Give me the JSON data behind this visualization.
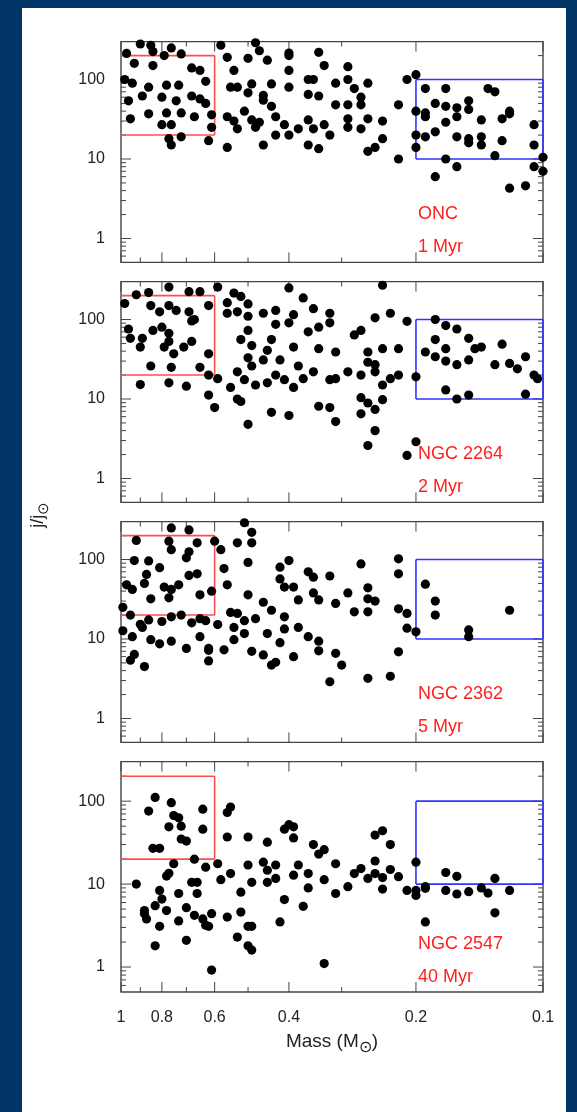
{
  "chart_data": [
    {
      "type": "scatter",
      "log": "xy",
      "xlim": [
        1,
        0.1
      ],
      "ylim": [
        0.5,
        300
      ],
      "marker": "circle",
      "tick_labels": "y",
      "xticks": [
        1,
        {
          "value": 0.9,
          "label": null
        },
        0.8,
        {
          "value": 0.7,
          "label": null
        },
        0.6,
        {
          "value": 0.5,
          "label": null
        },
        0.4,
        {
          "value": 0.3,
          "label": null
        },
        0.2,
        0.1
      ],
      "yticks": [
        {
          "value": 0.6,
          "label": null
        },
        {
          "value": 0.7,
          "label": null
        },
        {
          "value": 0.8,
          "label": null
        },
        {
          "value": 0.9,
          "label": null
        },
        1,
        {
          "value": 2,
          "label": null
        },
        {
          "value": 3,
          "label": null
        },
        {
          "value": 4,
          "label": null
        },
        {
          "value": 5,
          "label": null
        },
        {
          "value": 6,
          "label": null
        },
        {
          "value": 7,
          "label": null
        },
        {
          "value": 8,
          "label": null
        },
        {
          "value": 9,
          "label": null
        },
        10,
        {
          "value": 20,
          "label": null
        },
        {
          "value": 30,
          "label": null
        },
        {
          "value": 40,
          "label": null
        },
        {
          "value": 50,
          "label": null
        },
        {
          "value": 60,
          "label": null
        },
        {
          "value": 70,
          "label": null
        },
        {
          "value": 80,
          "label": null
        },
        {
          "value": 90,
          "label": null
        },
        100,
        {
          "value": 200,
          "label": null
        }
      ],
      "annotations": [
        "ONC",
        "1 Myr"
      ],
      "series": [
        {
          "type": "scatter",
          "color": "#000000",
          "x": [
            0.9,
            0.85,
            0.97,
            0.84,
            0.79,
            0.76,
            0.72,
            0.58,
            0.48,
            0.47,
            0.4,
            0.34,
            0.56,
            0.5,
            0.45,
            0.4,
            0.93,
            0.84,
            0.68,
            0.65,
            0.54,
            0.4,
            0.33,
            0.29,
            0.29,
            0.31,
            0.26,
            0.36,
            0.35,
            0.21,
            0.2,
            0.98,
            0.94,
            0.86,
            0.78,
            0.73,
            0.63,
            0.55,
            0.53,
            0.49,
            0.44,
            0.4,
            0.36,
            0.34,
            0.5,
            0.46,
            0.28,
            0.27,
            0.19,
            0.17,
            0.135,
            0.13,
            0.96,
            0.89,
            0.8,
            0.74,
            0.68,
            0.65,
            0.63,
            0.46,
            0.44,
            0.31,
            0.29,
            0.27,
            0.22,
            0.18,
            0.17,
            0.16,
            0.15,
            0.15,
            0.12,
            0.12,
            0.95,
            0.86,
            0.78,
            0.72,
            0.67,
            0.61,
            0.56,
            0.54,
            0.51,
            0.49,
            0.47,
            0.43,
            0.41,
            0.38,
            0.36,
            0.33,
            0.29,
            0.26,
            0.24,
            0.2,
            0.19,
            0.19,
            0.17,
            0.16,
            0.14,
            0.125,
            0.105,
            0.8,
            0.76,
            0.61,
            0.53,
            0.48,
            0.43,
            0.4,
            0.35,
            0.32,
            0.29,
            0.27,
            0.24,
            0.2,
            0.19,
            0.18,
            0.16,
            0.15,
            0.15,
            0.14,
            0.14,
            0.125,
            0.77,
            0.76,
            0.72,
            0.62,
            0.56,
            0.46,
            0.36,
            0.34,
            0.26,
            0.25,
            0.22,
            0.2,
            0.17,
            0.16,
            0.18,
            0.13,
            0.12,
            0.11,
            0.105,
            0.105,
            0.1,
            0.1
          ],
          "values": [
            280,
            270,
            213,
            225,
            200,
            250,
            210,
            270,
            290,
            230,
            215,
            220,
            190,
            185,
            175,
            200,
            160,
            150,
            140,
            130,
            130,
            130,
            150,
            145,
            100,
            90,
            90,
            100,
            100,
            100,
            115,
            100,
            90,
            80,
            85,
            85,
            95,
            80,
            80,
            88,
            88,
            80,
            65,
            62,
            68,
            63,
            77,
            60,
            77,
            77,
            77,
            70,
            54,
            62,
            60,
            54,
            62,
            57,
            50,
            55,
            46,
            48,
            48,
            48,
            48,
            50,
            46,
            44,
            54,
            42,
            40,
            37,
            32,
            37,
            38,
            38,
            34,
            36,
            34,
            30,
            40,
            31,
            29,
            34,
            27,
            24,
            31,
            27,
            32,
            32,
            30,
            40,
            38,
            34,
            29,
            34,
            31,
            32,
            27,
            27,
            27,
            25,
            24,
            25,
            20,
            20,
            24,
            20,
            25,
            24,
            18,
            20,
            19,
            22,
            19,
            16,
            18,
            19,
            15,
            17,
            18,
            15,
            19,
            17,
            14,
            15,
            15,
            13.5,
            12.5,
            14,
            10,
            14,
            10,
            8,
            6,
            11,
            4.3,
            4.6,
            8,
            15,
            7,
            10.5
          ]
        },
        {
          "type": "line",
          "color": "#ff4d4d",
          "marker": "none",
          "x": [
            1,
            0.6
          ],
          "values": [
            20,
            20
          ]
        },
        {
          "type": "line",
          "color": "#ff4d4d",
          "marker": "none",
          "x": [
            1,
            0.6
          ],
          "values": [
            200,
            200
          ]
        },
        {
          "type": "line",
          "color": "#ff4d4d",
          "marker": "none",
          "x": [
            0.6,
            0.6
          ],
          "values": [
            20,
            200
          ]
        },
        {
          "type": "line",
          "color": "#3333ff",
          "marker": "none",
          "x": [
            0.2,
            0.1
          ],
          "values": [
            10,
            10
          ]
        },
        {
          "type": "line",
          "color": "#3333ff",
          "marker": "none",
          "x": [
            0.2,
            0.1
          ],
          "values": [
            100,
            100
          ]
        },
        {
          "type": "line",
          "color": "#3333ff",
          "marker": "none",
          "x": [
            0.2,
            0.2
          ],
          "values": [
            10,
            100
          ]
        },
        {
          "type": "line",
          "color": "#3333ff",
          "marker": "none",
          "x": [
            0.1,
            0.1
          ],
          "values": [
            10,
            100
          ]
        }
      ]
    },
    {
      "type": "scatter",
      "log": "xy",
      "xlim": [
        1,
        0.1
      ],
      "ylim": [
        0.5,
        300
      ],
      "marker": "circle",
      "tick_labels": "y",
      "ylabel": "j/j$_{⊙}$",
      "xticks": [
        1,
        {
          "value": 0.9,
          "label": null
        },
        0.8,
        {
          "value": 0.7,
          "label": null
        },
        0.6,
        {
          "value": 0.5,
          "label": null
        },
        0.4,
        {
          "value": 0.3,
          "label": null
        },
        0.2,
        0.1
      ],
      "yticks": [
        {
          "value": 0.6,
          "label": null
        },
        {
          "value": 0.7,
          "label": null
        },
        {
          "value": 0.8,
          "label": null
        },
        {
          "value": 0.9,
          "label": null
        },
        1,
        {
          "value": 2,
          "label": null
        },
        {
          "value": 3,
          "label": null
        },
        {
          "value": 4,
          "label": null
        },
        {
          "value": 5,
          "label": null
        },
        {
          "value": 6,
          "label": null
        },
        {
          "value": 7,
          "label": null
        },
        {
          "value": 8,
          "label": null
        },
        {
          "value": 9,
          "label": null
        },
        10,
        {
          "value": 20,
          "label": null
        },
        {
          "value": 30,
          "label": null
        },
        {
          "value": 40,
          "label": null
        },
        {
          "value": 50,
          "label": null
        },
        {
          "value": 60,
          "label": null
        },
        {
          "value": 70,
          "label": null
        },
        {
          "value": 80,
          "label": null
        },
        {
          "value": 90,
          "label": null
        },
        100,
        {
          "value": 200,
          "label": null
        }
      ],
      "annotations": [
        "NGC 2264",
        "2 Myr"
      ],
      "series": [
        {
          "type": "scatter",
          "color": "#000000",
          "x": [
            0.98,
            0.92,
            0.86,
            0.77,
            0.69,
            0.65,
            0.59,
            0.4,
            0.24,
            0.54,
            0.52,
            0.5,
            0.37,
            0.35,
            0.85,
            0.77,
            0.74,
            0.81,
            0.69,
            0.62,
            0.56,
            0.56,
            0.53,
            0.5,
            0.46,
            0.43,
            0.39,
            0.32,
            0.23,
            0.25,
            0.21,
            0.18,
            0.17,
            0.96,
            0.95,
            0.89,
            0.9,
            0.84,
            0.8,
            0.77,
            0.68,
            0.67,
            0.68,
            0.77,
            0.71,
            0.75,
            0.79,
            0.85,
            0.76,
            0.65,
            0.62,
            0.5,
            0.52,
            0.49,
            0.44,
            0.39,
            0.43,
            0.4,
            0.36,
            0.34,
            0.32,
            0.34,
            0.31,
            0.28,
            0.27,
            0.26,
            0.24,
            0.22,
            0.19,
            0.18,
            0.17,
            0.16,
            0.15,
            0.145,
            0.14,
            0.125,
            0.15,
            0.13,
            0.12,
            0.11,
            0.115,
            0.105,
            0.103,
            0.18,
            0.17,
            0.16,
            0.62,
            0.59,
            0.55,
            0.53,
            0.51,
            0.49,
            0.48,
            0.45,
            0.43,
            0.42,
            0.41,
            0.39,
            0.38,
            0.37,
            0.35,
            0.32,
            0.31,
            0.29,
            0.27,
            0.26,
            0.25,
            0.25,
            0.24,
            0.23,
            0.22,
            0.2,
            0.5,
            0.46,
            0.45,
            0.53,
            0.52,
            0.44,
            0.4,
            0.5,
            0.34,
            0.32,
            0.31,
            0.27,
            0.27,
            0.26,
            0.25,
            0.24,
            0.25,
            0.26,
            0.2,
            0.21,
            0.62,
            0.6,
            0.9,
            0.77,
            0.7,
            0.17,
            0.16,
            0.15,
            0.11
          ],
          "values": [
            159,
            205,
            218,
            256,
            224,
            224,
            256,
            250,
            270,
            215,
            195,
            157,
            187,
            137,
            150,
            150,
            130,
            125,
            125,
            150,
            163,
            120,
            125,
            110,
            120,
            130,
            115,
            120,
            120,
            105,
            95,
            100,
            84,
            76,
            58,
            58,
            45,
            73,
            80,
            67,
            96,
            100,
            53,
            53,
            45,
            37,
            45,
            26,
            25,
            25,
            37,
            73,
            56,
            47,
            56,
            45,
            87,
            91,
            70,
            80,
            91,
            43,
            39,
            64,
            73,
            39,
            43,
            43,
            39,
            56,
            43,
            76,
            58,
            43,
            45,
            49,
            31,
            27,
            28,
            34,
            24,
            20,
            18,
            34,
            30,
            27,
            20,
            18,
            14,
            22,
            17.5,
            26,
            15,
            16,
            20,
            31,
            17.5,
            14,
            26,
            18,
            22,
            17.5,
            18,
            22,
            20,
            29,
            22,
            27,
            15,
            18,
            20,
            19,
            33,
            31,
            41,
            10,
            9.3,
            6.8,
            6.2,
            4.8,
            8.1,
            7.8,
            5.2,
            10.4,
            6.5,
            8.9,
            7.4,
            9.8,
            4,
            2.6,
            2.9,
            1.95,
            11.2,
            7.8,
            15.2,
            16,
            14.5,
            13,
            10,
            11.2,
            11.5
          ]
        },
        {
          "type": "line",
          "color": "#ff4d4d",
          "marker": "none",
          "x": [
            1,
            0.6
          ],
          "values": [
            20,
            20
          ]
        },
        {
          "type": "line",
          "color": "#ff4d4d",
          "marker": "none",
          "x": [
            1,
            0.6
          ],
          "values": [
            200,
            200
          ]
        },
        {
          "type": "line",
          "color": "#ff4d4d",
          "marker": "none",
          "x": [
            0.6,
            0.6
          ],
          "values": [
            20,
            200
          ]
        },
        {
          "type": "line",
          "color": "#3333ff",
          "marker": "none",
          "x": [
            0.2,
            0.1
          ],
          "values": [
            10,
            10
          ]
        },
        {
          "type": "line",
          "color": "#3333ff",
          "marker": "none",
          "x": [
            0.2,
            0.1
          ],
          "values": [
            100,
            100
          ]
        },
        {
          "type": "line",
          "color": "#3333ff",
          "marker": "none",
          "x": [
            0.2,
            0.2
          ],
          "values": [
            10,
            100
          ]
        },
        {
          "type": "line",
          "color": "#3333ff",
          "marker": "none",
          "x": [
            0.1,
            0.1
          ],
          "values": [
            10,
            100
          ]
        }
      ]
    },
    {
      "type": "scatter",
      "log": "xy",
      "xlim": [
        1,
        0.1
      ],
      "ylim": [
        0.5,
        300
      ],
      "marker": "circle",
      "tick_labels": "y",
      "xticks": [
        1,
        {
          "value": 0.9,
          "label": null
        },
        0.8,
        {
          "value": 0.7,
          "label": null
        },
        0.6,
        {
          "value": 0.5,
          "label": null
        },
        0.4,
        {
          "value": 0.3,
          "label": null
        },
        0.2,
        0.1
      ],
      "yticks": [
        {
          "value": 0.6,
          "label": null
        },
        {
          "value": 0.7,
          "label": null
        },
        {
          "value": 0.8,
          "label": null
        },
        {
          "value": 0.9,
          "label": null
        },
        1,
        {
          "value": 2,
          "label": null
        },
        {
          "value": 3,
          "label": null
        },
        {
          "value": 4,
          "label": null
        },
        {
          "value": 5,
          "label": null
        },
        {
          "value": 6,
          "label": null
        },
        {
          "value": 7,
          "label": null
        },
        {
          "value": 8,
          "label": null
        },
        {
          "value": 9,
          "label": null
        },
        10,
        {
          "value": 20,
          "label": null
        },
        {
          "value": 30,
          "label": null
        },
        {
          "value": 40,
          "label": null
        },
        {
          "value": 50,
          "label": null
        },
        {
          "value": 60,
          "label": null
        },
        {
          "value": 70,
          "label": null
        },
        {
          "value": 80,
          "label": null
        },
        {
          "value": 90,
          "label": null
        },
        100,
        {
          "value": 200,
          "label": null
        }
      ],
      "annotations": [
        "NGC 2362",
        "5 Myr"
      ],
      "series": [
        {
          "type": "scatter",
          "color": "#000000",
          "x": [
            0.76,
            0.69,
            0.51,
            0.49,
            0.92,
            0.77,
            0.66,
            0.6,
            0.53,
            0.76,
            0.69,
            0.7,
            0.58,
            0.49,
            0.93,
            0.86,
            0.81,
            0.5,
            0.4,
            0.27,
            0.22,
            0.22,
            0.87,
            0.69,
            0.66,
            0.57,
            0.42,
            0.36,
            0.35,
            0.32,
            0.42,
            0.97,
            0.94,
            0.88,
            0.79,
            0.76,
            0.73,
            0.85,
            0.77,
            0.65,
            0.61,
            0.56,
            0.5,
            0.46,
            0.41,
            0.39,
            0.38,
            0.35,
            0.34,
            0.29,
            0.26,
            0.26,
            0.25,
            0.26,
            0.28,
            0.31,
            0.22,
            0.21,
            0.19,
            0.18,
            0.18,
            0.12,
            0.2,
            0.21,
            0.15,
            0.15,
            0.99,
            0.95,
            0.9,
            0.86,
            0.8,
            0.76,
            0.72,
            0.68,
            0.65,
            0.63,
            0.59,
            0.55,
            0.54,
            0.53,
            0.51,
            0.48,
            0.44,
            0.41,
            0.41,
            0.38,
            0.99,
            0.94,
            0.89,
            0.85,
            0.81,
            0.76,
            0.7,
            0.65,
            0.62,
            0.57,
            0.54,
            0.51,
            0.49,
            0.46,
            0.45,
            0.42,
            0.39,
            0.36,
            0.34,
            0.34,
            0.31,
            0.3,
            0.44,
            0.43,
            0.95,
            0.93,
            0.88,
            0.62,
            0.62,
            0.32,
            0.26,
            0.23,
            0.22
          ],
          "values": [
            250,
            236,
            290,
            220,
            174,
            170,
            162,
            170,
            162,
            133,
            125,
            105,
            133,
            162,
            97,
            96,
            79,
            92,
            97,
            88,
            102,
            66,
            65,
            63,
            66,
            77,
            80,
            70,
            60,
            62,
            57,
            48,
            42,
            50,
            45,
            42,
            48,
            32,
            33,
            36,
            40,
            48,
            36,
            29,
            45,
            45,
            31,
            38,
            31,
            38,
            44,
            32,
            30,
            22,
            22,
            28,
            24,
            21,
            49,
            30,
            20,
            23,
            12.3,
            13.7,
            13,
            10.7,
            25,
            20,
            15.3,
            17.4,
            16.6,
            19,
            20,
            16,
            18,
            17,
            15.2,
            21.6,
            14,
            21,
            17,
            18,
            23,
            19,
            13.4,
            14,
            12.7,
            10.7,
            14,
            9.8,
            8.7,
            9.4,
            7.6,
            10.7,
            7.6,
            7.3,
            9.8,
            11.7,
            7,
            6.3,
            11.7,
            9,
            6,
            10.7,
            9.4,
            7.1,
            6.6,
            4.7,
            4.7,
            5.1,
            5.4,
            6.4,
            4.5,
            7.2,
            5.3,
            2.9,
            3.2,
            3.4,
            6.9
          ]
        },
        {
          "type": "line",
          "color": "#ff4d4d",
          "marker": "none",
          "x": [
            1,
            0.6
          ],
          "values": [
            20,
            20
          ]
        },
        {
          "type": "line",
          "color": "#ff4d4d",
          "marker": "none",
          "x": [
            1,
            0.6
          ],
          "values": [
            200,
            200
          ]
        },
        {
          "type": "line",
          "color": "#ff4d4d",
          "marker": "none",
          "x": [
            0.6,
            0.6
          ],
          "values": [
            20,
            200
          ]
        },
        {
          "type": "line",
          "color": "#3333ff",
          "marker": "none",
          "x": [
            0.2,
            0.1
          ],
          "values": [
            10,
            10
          ]
        },
        {
          "type": "line",
          "color": "#3333ff",
          "marker": "none",
          "x": [
            0.2,
            0.1
          ],
          "values": [
            100,
            100
          ]
        },
        {
          "type": "line",
          "color": "#3333ff",
          "marker": "none",
          "x": [
            0.2,
            0.2
          ],
          "values": [
            10,
            100
          ]
        },
        {
          "type": "line",
          "color": "#3333ff",
          "marker": "none",
          "x": [
            0.1,
            0.1
          ],
          "values": [
            10,
            100
          ]
        }
      ]
    },
    {
      "type": "scatter",
      "log": "xy",
      "xlim": [
        1,
        0.1
      ],
      "ylim": [
        0.5,
        300
      ],
      "marker": "circle",
      "xlabel": "Mass (M$_{⊙}$)",
      "xticks": [
        1,
        {
          "value": 0.9,
          "label": null
        },
        0.8,
        {
          "value": 0.7,
          "label": null
        },
        0.6,
        {
          "value": 0.5,
          "label": null
        },
        0.4,
        {
          "value": 0.3,
          "label": null
        },
        0.2,
        0.1
      ],
      "yticks": [
        {
          "value": 0.6,
          "label": null
        },
        {
          "value": 0.7,
          "label": null
        },
        {
          "value": 0.8,
          "label": null
        },
        {
          "value": 0.9,
          "label": null
        },
        1,
        {
          "value": 2,
          "label": null
        },
        {
          "value": 3,
          "label": null
        },
        {
          "value": 4,
          "label": null
        },
        {
          "value": 5,
          "label": null
        },
        {
          "value": 6,
          "label": null
        },
        {
          "value": 7,
          "label": null
        },
        {
          "value": 8,
          "label": null
        },
        {
          "value": 9,
          "label": null
        },
        10,
        {
          "value": 20,
          "label": null
        },
        {
          "value": 30,
          "label": null
        },
        {
          "value": 40,
          "label": null
        },
        {
          "value": 50,
          "label": null
        },
        {
          "value": 60,
          "label": null
        },
        {
          "value": 70,
          "label": null
        },
        {
          "value": 80,
          "label": null
        },
        {
          "value": 90,
          "label": null
        },
        100,
        {
          "value": 200,
          "label": null
        }
      ],
      "annotations": [
        "NGC 2547",
        "40 Myr"
      ],
      "series": [
        {
          "type": "scatter",
          "color": "#000000",
          "x": [
            0.83,
            0.76,
            0.86,
            0.75,
            0.73,
            0.64,
            0.56,
            0.55,
            0.77,
            0.72,
            0.64,
            0.72,
            0.7,
            0.84,
            0.81,
            0.56,
            0.5,
            0.45,
            0.41,
            0.4,
            0.39,
            0.39,
            0.35,
            0.33,
            0.34,
            0.25,
            0.24,
            0.23,
            0.2,
            0.92,
            0.75,
            0.77,
            0.81,
            0.78,
            0.73,
            0.68,
            0.66,
            0.66,
            0.67,
            0.63,
            0.59,
            0.58,
            0.55,
            0.52,
            0.5,
            0.49,
            0.46,
            0.45,
            0.43,
            0.45,
            0.43,
            0.39,
            0.38,
            0.36,
            0.36,
            0.33,
            0.31,
            0.31,
            0.29,
            0.28,
            0.27,
            0.26,
            0.25,
            0.25,
            0.24,
            0.24,
            0.23,
            0.22,
            0.21,
            0.2,
            0.19,
            0.2,
            0.19,
            0.17,
            0.16,
            0.16,
            0.17,
            0.15,
            0.14,
            0.135,
            0.13,
            0.12,
            0.13,
            0.19,
            0.41,
            0.42,
            0.37,
            0.56,
            0.52,
            0.53,
            0.5,
            0.49,
            0.5,
            0.49,
            0.61,
            0.33,
            0.7,
            0.83,
            0.88,
            0.87,
            0.83,
            0.81,
            0.78,
            0.73,
            0.7,
            0.67,
            0.64,
            0.62,
            0.61,
            0.63,
            0.8,
            0.88
          ],
          "values": [
            111,
            96,
            76,
            67,
            63,
            80,
            73,
            85,
            49,
            50,
            46,
            35,
            33,
            27,
            27,
            37,
            37,
            32,
            46,
            52,
            49,
            36,
            30,
            26,
            23,
            39,
            44,
            30,
            18.4,
            10,
            17.6,
            13.5,
            8.4,
            12.5,
            7.7,
            10.5,
            10.5,
            7.7,
            20,
            16,
            17.6,
            11.3,
            13.4,
            8,
            17,
            10.5,
            18.4,
            14.7,
            17,
            10.5,
            11.7,
            12.8,
            17,
            13.4,
            9,
            11.3,
            17.6,
            7.7,
            9.3,
            13.4,
            15.4,
            11.7,
            19,
            13.4,
            8.7,
            12,
            15,
            12.3,
            8.4,
            8.4,
            8.9,
            7.3,
            9.3,
            13.8,
            12.4,
            7.6,
            8.4,
            8.1,
            9,
            7.8,
            11.7,
            8.4,
            4.5,
            3.5,
            6.5,
            3.5,
            5.4,
            4,
            4.6,
            2.3,
            1.8,
            1.6,
            3.1,
            3.1,
            0.92,
            1.1,
            2.1,
            1.8,
            4.8,
            3.8,
            5.5,
            3.1,
            4.8,
            3.6,
            5.2,
            4.2,
            3.8,
            3.1,
            4.4,
            3.2,
            6.6,
            4.4
          ]
        },
        {
          "type": "line",
          "color": "#ff4d4d",
          "marker": "none",
          "x": [
            1,
            0.6
          ],
          "values": [
            20,
            20
          ]
        },
        {
          "type": "line",
          "color": "#ff4d4d",
          "marker": "none",
          "x": [
            1,
            0.6
          ],
          "values": [
            200,
            200
          ]
        },
        {
          "type": "line",
          "color": "#ff4d4d",
          "marker": "none",
          "x": [
            0.6,
            0.6
          ],
          "values": [
            20,
            200
          ]
        },
        {
          "type": "line",
          "color": "#3333ff",
          "marker": "none",
          "x": [
            0.2,
            0.1
          ],
          "values": [
            10,
            10
          ]
        },
        {
          "type": "line",
          "color": "#3333ff",
          "marker": "none",
          "x": [
            0.2,
            0.1
          ],
          "values": [
            100,
            100
          ]
        },
        {
          "type": "line",
          "color": "#3333ff",
          "marker": "none",
          "x": [
            0.2,
            0.2
          ],
          "values": [
            10,
            100
          ]
        },
        {
          "type": "line",
          "color": "#3333ff",
          "marker": "none",
          "x": [
            0.1,
            0.1
          ],
          "values": [
            10,
            100
          ]
        }
      ]
    }
  ]
}
